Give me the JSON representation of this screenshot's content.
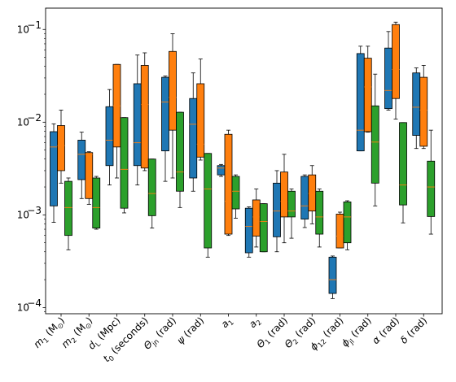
{
  "chart_data": {
    "type": "box",
    "title": "",
    "xlabel": "",
    "ylabel": "",
    "yscale": "log",
    "ylim": [
      8.58e-05,
      0.17
    ],
    "yticks": [
      {
        "value": 0.0001,
        "mant": "10",
        "exp": "−4"
      },
      {
        "value": 0.001,
        "mant": "10",
        "exp": "−3"
      },
      {
        "value": 0.01,
        "mant": "10",
        "exp": "−2"
      },
      {
        "value": 0.1,
        "mant": "10",
        "exp": "−1"
      }
    ],
    "categories": [
      {
        "sym": "m",
        "sub": "1",
        "unit": " (M",
        "usub": "⊙",
        "close": ")"
      },
      {
        "sym": "m",
        "sub": "2",
        "unit": " (M",
        "usub": "⊙",
        "close": ")"
      },
      {
        "sym": "d",
        "sub": "L",
        "unit": " (Mpc)",
        "usub": "",
        "close": ""
      },
      {
        "sym": "t",
        "sub": "0",
        "unit": " (seconds)",
        "usub": "",
        "close": ""
      },
      {
        "sym": "Θ",
        "sub": "jn",
        "unit": " (rad)",
        "usub": "",
        "close": ""
      },
      {
        "sym": "ψ",
        "sub": "",
        "unit": " (rad)",
        "usub": "",
        "close": ""
      },
      {
        "sym": "a",
        "sub": "1",
        "unit": "",
        "usub": "",
        "close": ""
      },
      {
        "sym": "a",
        "sub": "2",
        "unit": "",
        "usub": "",
        "close": ""
      },
      {
        "sym": "Θ",
        "sub": "1",
        "unit": " (rad)",
        "usub": "",
        "close": ""
      },
      {
        "sym": "Θ",
        "sub": "2",
        "unit": " (rad)",
        "usub": "",
        "close": ""
      },
      {
        "sym": "ϕ",
        "sub": "12",
        "unit": " (rad)",
        "usub": "",
        "close": ""
      },
      {
        "sym": "ϕ",
        "sub": "jl",
        "unit": " (rad)",
        "usub": "",
        "close": ""
      },
      {
        "sym": "α",
        "sub": "",
        "unit": " (rad)",
        "usub": "",
        "close": ""
      },
      {
        "sym": "δ",
        "sub": "",
        "unit": " (rad)",
        "usub": "",
        "close": ""
      }
    ],
    "series": [
      {
        "color": "#1f77b4",
        "boxes": [
          [
            0.00083,
            0.00125,
            0.0054,
            0.0079,
            0.0096
          ],
          [
            0.0015,
            0.0024,
            0.0045,
            0.0064,
            0.0078
          ],
          [
            0.0021,
            0.0034,
            0.0064,
            0.0147,
            0.0225
          ],
          [
            0.0021,
            0.0034,
            0.006,
            0.026,
            0.053
          ],
          [
            0.0023,
            0.0049,
            0.0165,
            0.0305,
            0.0315
          ],
          [
            0.0018,
            0.0025,
            0.0095,
            0.018,
            0.034
          ],
          [
            0.0026,
            0.0027,
            0.0032,
            0.0034,
            0.0035
          ],
          [
            0.00035,
            0.00039,
            0.00075,
            0.00118,
            0.00122
          ],
          [
            0.0004,
            0.00058,
            0.0011,
            0.0022,
            0.003
          ],
          [
            0.00073,
            0.0009,
            0.00125,
            0.0026,
            0.0027
          ],
          [
            0.000125,
            0.000142,
            0.0002,
            0.00035,
            0.00036
          ],
          [
            0.0049,
            0.0049,
            0.0082,
            0.055,
            0.066
          ],
          [
            0.0135,
            0.014,
            0.022,
            0.063,
            0.095
          ],
          [
            0.0052,
            0.0072,
            0.0145,
            0.034,
            0.0385
          ]
        ]
      },
      {
        "color": "#ff7f0e",
        "boxes": [
          [
            0.0022,
            0.003,
            0.0056,
            0.0092,
            0.0135
          ],
          [
            0.0013,
            0.0015,
            0.0045,
            0.0047,
            0.0048
          ],
          [
            0.0025,
            0.0054,
            0.015,
            0.042,
            0.042
          ],
          [
            0.003,
            0.0032,
            0.0155,
            0.041,
            0.056
          ],
          [
            0.0025,
            0.0082,
            0.0185,
            0.058,
            0.09
          ],
          [
            0.0039,
            0.0042,
            0.0058,
            0.026,
            0.048
          ],
          [
            0.0006,
            0.00062,
            0.0014,
            0.0074,
            0.0082
          ],
          [
            0.00045,
            0.00059,
            0.00095,
            0.00145,
            0.0019
          ],
          [
            0.0005,
            0.00095,
            0.0014,
            0.0029,
            0.0045
          ],
          [
            0.0008,
            0.0011,
            0.0017,
            0.0027,
            0.0034
          ],
          [
            0.00044,
            0.00044,
            0.00059,
            0.00102,
            0.00107
          ],
          [
            0.0078,
            0.0079,
            0.024,
            0.049,
            0.066
          ],
          [
            0.0108,
            0.018,
            0.037,
            0.113,
            0.12
          ],
          [
            0.0052,
            0.0055,
            0.0135,
            0.0305,
            0.041
          ]
        ]
      },
      {
        "color": "#2ca02c",
        "boxes": [
          [
            0.00042,
            0.0006,
            0.0012,
            0.0023,
            0.0025
          ],
          [
            0.0007,
            0.00072,
            0.0012,
            0.0025,
            0.0026
          ],
          [
            0.00105,
            0.00118,
            0.0031,
            0.0112,
            0.0112
          ],
          [
            0.00072,
            0.00098,
            0.0017,
            0.004,
            0.004
          ],
          [
            0.0012,
            0.0018,
            0.0029,
            0.0128,
            0.0128
          ],
          [
            0.00035,
            0.00044,
            0.0019,
            0.0046,
            0.0046
          ],
          [
            0.00092,
            0.00116,
            0.0018,
            0.0026,
            0.0027
          ],
          [
            0.0004,
            0.0004,
            0.00085,
            0.00132,
            0.00132
          ],
          [
            0.00056,
            0.00095,
            0.0011,
            0.0018,
            0.0019
          ],
          [
            0.00045,
            0.00062,
            0.00095,
            0.0018,
            0.0019
          ],
          [
            0.00042,
            0.0005,
            0.00095,
            0.00138,
            0.00142
          ],
          [
            0.00125,
            0.0022,
            0.0061,
            0.015,
            0.033
          ],
          [
            0.00082,
            0.00128,
            0.0021,
            0.0099,
            0.0099
          ],
          [
            0.00062,
            0.00096,
            0.002,
            0.0038,
            0.0082
          ]
        ]
      }
    ],
    "median_color": "#ff7f0e",
    "grid": false,
    "legend": "none"
  }
}
